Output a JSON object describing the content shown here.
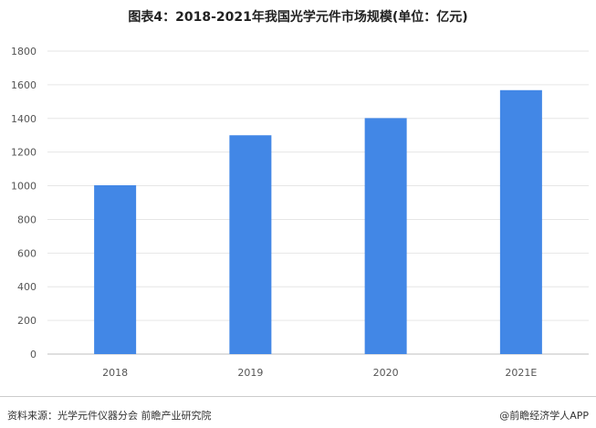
{
  "chart_data": {
    "type": "bar",
    "title": "图表4：2018-2021年我国光学元件市场规模(单位：亿元)",
    "categories": [
      "2018",
      "2019",
      "2020",
      "2021E"
    ],
    "values": [
      1003,
      1300,
      1402,
      1568
    ],
    "ylim": [
      0,
      1800
    ],
    "yticks": [
      0,
      200,
      400,
      600,
      800,
      1000,
      1200,
      1400,
      1600,
      1800
    ],
    "grid": true,
    "bar_color": "#4287e6"
  },
  "footer": {
    "source": "资料来源：光学元件仪器分会 前瞻产业研究院",
    "brand": "@前瞻经济学人APP"
  }
}
